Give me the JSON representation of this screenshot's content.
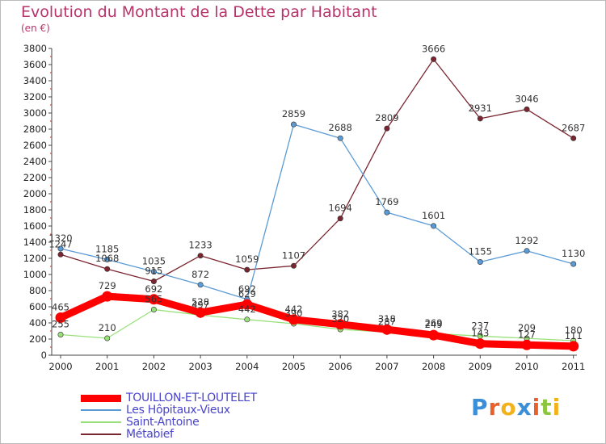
{
  "header": {
    "title": "Evolution du Montant de la Dette par Habitant",
    "subtitle": "(en €)"
  },
  "chart_data": {
    "type": "line",
    "title": "Evolution du Montant de la Dette par Habitant",
    "subtitle": "(en €)",
    "categories": [
      "2000",
      "2001",
      "2002",
      "2003",
      "2004",
      "2005",
      "2006",
      "2007",
      "2008",
      "2009",
      "2010",
      "2011"
    ],
    "ylim": [
      0,
      3800
    ],
    "yticks": [
      0,
      200,
      400,
      600,
      800,
      1000,
      1200,
      1400,
      1600,
      1800,
      2000,
      2200,
      2400,
      2600,
      2800,
      3000,
      3200,
      3400,
      3600,
      3800
    ],
    "grid": false,
    "legend_position": "bottom-left",
    "series": [
      {
        "name": "Métabief",
        "color": "#7a2530",
        "values": [
          1247,
          1068,
          915,
          1233,
          1059,
          1107,
          1694,
          2809,
          3666,
          2931,
          3046,
          2687
        ]
      },
      {
        "name": "Les Hôpitaux-Vieux",
        "color": "#5b9bd5",
        "values": [
          1320,
          1185,
          1035,
          872,
          692,
          2859,
          2688,
          1769,
          1601,
          1155,
          1292,
          1130
        ]
      },
      {
        "name": "Saint-Antoine",
        "color": "#99e07a",
        "values": [
          255,
          210,
          565,
          497,
          442,
          390,
          320,
          287,
          269,
          237,
          209,
          180
        ]
      },
      {
        "name": "TOUILLON-ET-LOUTELET",
        "color": "#ff0000",
        "values": [
          465,
          729,
          692,
          528,
          629,
          442,
          382,
          318,
          249,
          143,
          127,
          111
        ]
      }
    ],
    "data_labels": [
      {
        "series": "Métabief",
        "labels": [
          "1247",
          "1068",
          "915",
          "1233",
          "1059",
          "1107",
          "1694",
          "2809",
          "3666",
          "2931",
          "3046",
          "2687"
        ]
      },
      {
        "series": "Les Hôpitaux-Vieux",
        "labels": [
          "1320",
          "1185",
          "1035",
          "872",
          "692",
          "2859",
          "2688",
          "1769",
          "1601",
          "1155",
          "1292",
          "1130"
        ]
      },
      {
        "series": "Saint-Antoine",
        "labels": [
          "255",
          "210",
          "565",
          "497",
          "442",
          "390",
          "320",
          "287",
          "269",
          "237",
          "209",
          "180"
        ]
      },
      {
        "series": "TOUILLON-ET-LOUTELET",
        "labels": [
          "465",
          "729",
          "692",
          "528",
          "629",
          "442",
          "382",
          "318",
          "249",
          "143",
          "127",
          "111"
        ]
      }
    ]
  },
  "legend": {
    "items": [
      {
        "label": "TOUILLON-ET-LOUTELET",
        "color": "#ff0000"
      },
      {
        "label": "Les Hôpitaux-Vieux",
        "color": "#5b9bd5"
      },
      {
        "label": "Saint-Antoine",
        "color": "#99e07a"
      },
      {
        "label": "Métabief",
        "color": "#7a2530"
      }
    ]
  },
  "logo": {
    "letters": [
      "P",
      "r",
      "o",
      "x",
      "i",
      "t",
      "i"
    ],
    "colors": [
      "#3a8fd8",
      "#e8602c",
      "#f2b21b",
      "#3a8fd8",
      "#e8602c",
      "#8cc63f",
      "#f2b21b"
    ]
  }
}
